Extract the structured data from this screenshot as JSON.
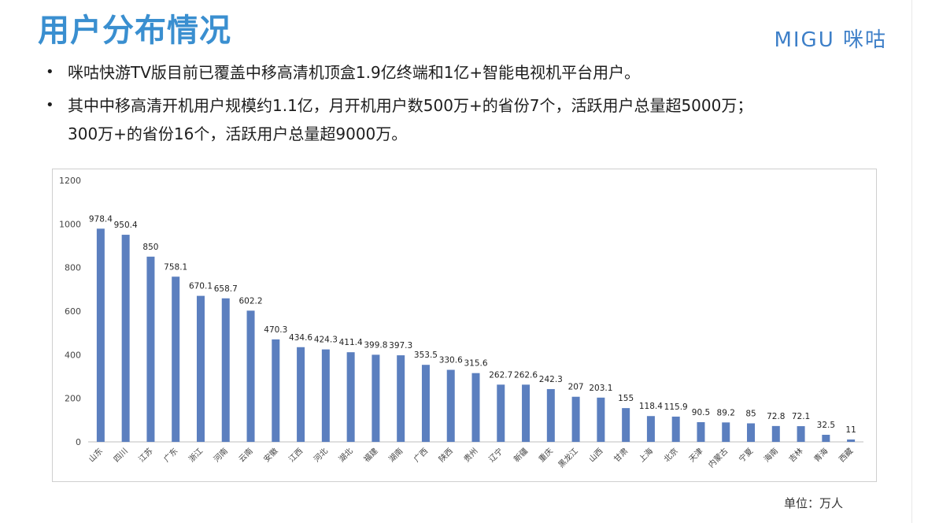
{
  "header": {
    "title": "用户分布情况",
    "logo_text": "MIGU 咪咕"
  },
  "bullets": [
    "咪咕快游TV版目前已覆盖中移高清机顶盒1.9亿终端和1亿+智能电视机平台用户。",
    "其中中移高清开机用户规模约1.1亿，月开机用户数500万+的省份7个，活跃用户总量超5000万；",
    "300万+的省份16个，活跃用户总量超9000万。"
  ],
  "bullet_symbol": "•",
  "unit_label": "单位：万人",
  "colors": {
    "title": "#3a8fd0",
    "bar": "#5b7fbf",
    "logo": "#3d7fc8"
  },
  "chart_data": {
    "type": "bar",
    "title": "",
    "xlabel": "",
    "ylabel": "",
    "ylim": [
      0,
      1200
    ],
    "yticks": [
      0,
      200,
      400,
      600,
      800,
      1000,
      1200
    ],
    "grid": false,
    "categories": [
      "山东",
      "四川",
      "江苏",
      "广东",
      "浙江",
      "河南",
      "云南",
      "安徽",
      "江西",
      "河北",
      "湖北",
      "福建",
      "湖南",
      "广西",
      "陕西",
      "贵州",
      "辽宁",
      "新疆",
      "重庆",
      "黑龙江",
      "山西",
      "甘肃",
      "上海",
      "北京",
      "天津",
      "内蒙古",
      "宁夏",
      "海南",
      "吉林",
      "青海",
      "西藏"
    ],
    "values": [
      978.4,
      950.4,
      850,
      758.1,
      670.1,
      658.7,
      602.2,
      470.3,
      434.6,
      424.3,
      411.4,
      399.8,
      397.3,
      353.5,
      330.6,
      315.6,
      262.7,
      262.6,
      242.3,
      207,
      203.1,
      155,
      118.4,
      115.9,
      90.5,
      89.2,
      85,
      72.8,
      72.1,
      32.5,
      11
    ]
  }
}
